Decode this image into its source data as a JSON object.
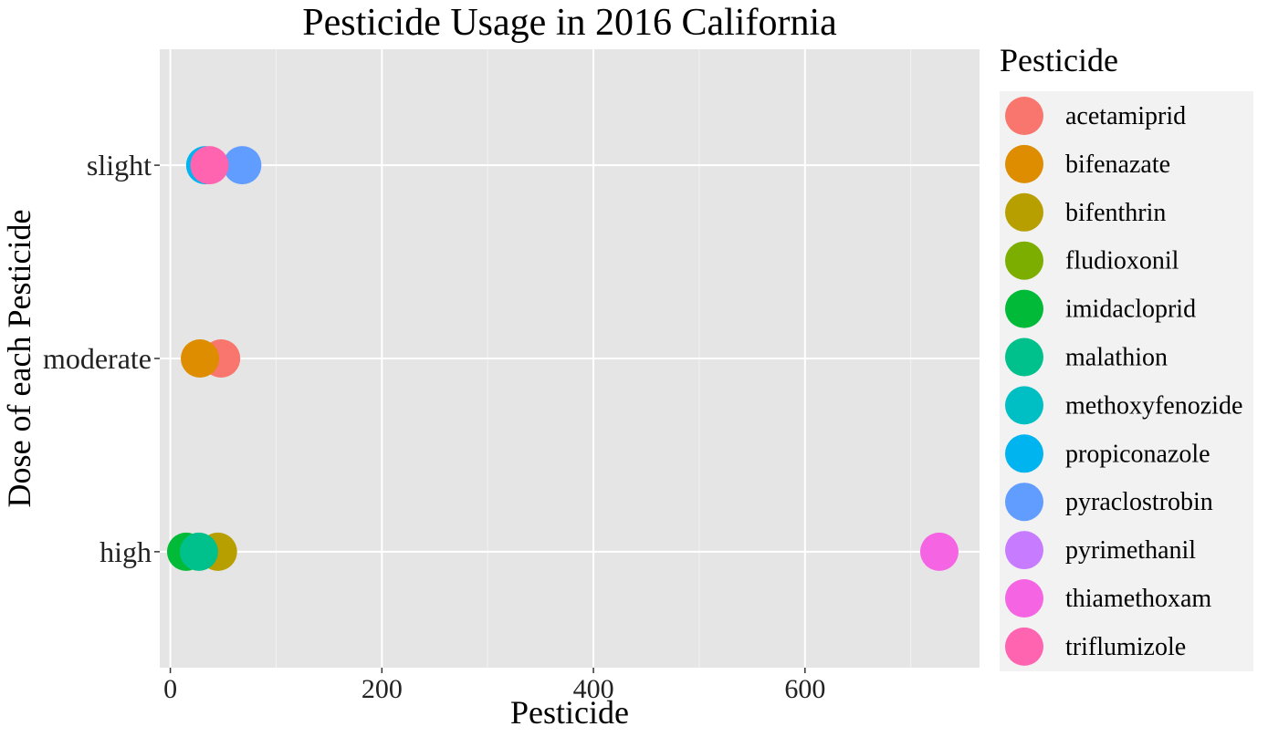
{
  "chart_data": {
    "type": "scatter",
    "title": "Pesticide Usage in 2016 California",
    "xlabel": "Pesticide",
    "ylabel": "Dose of each Pesticide",
    "xlim": [
      -10,
      765
    ],
    "x_ticks": [
      0,
      200,
      400,
      600
    ],
    "x_tick_labels": [
      "0",
      "200",
      "400",
      "600"
    ],
    "categories": [
      "high",
      "moderate",
      "slight"
    ],
    "grid": true,
    "legend": {
      "title": "Pesticide",
      "placement": "right"
    },
    "series": [
      {
        "name": "acetamiprid",
        "color": "#F8766D",
        "points": [
          {
            "x": 48,
            "y": "moderate"
          }
        ]
      },
      {
        "name": "bifenazate",
        "color": "#DE8C00",
        "points": [
          {
            "x": 28,
            "y": "moderate"
          }
        ]
      },
      {
        "name": "bifenthrin",
        "color": "#B79F00",
        "points": [
          {
            "x": 45,
            "y": "high"
          }
        ]
      },
      {
        "name": "fludioxonil",
        "color": "#7CAE00",
        "points": []
      },
      {
        "name": "imidacloprid",
        "color": "#00BA38",
        "points": [
          {
            "x": 15,
            "y": "high"
          }
        ]
      },
      {
        "name": "malathion",
        "color": "#00C08B",
        "points": [
          {
            "x": 27,
            "y": "high"
          }
        ]
      },
      {
        "name": "methoxyfenozide",
        "color": "#00BFC4",
        "points": []
      },
      {
        "name": "propiconazole",
        "color": "#00B4F0",
        "points": [
          {
            "x": 33,
            "y": "slight"
          }
        ]
      },
      {
        "name": "pyraclostrobin",
        "color": "#619CFF",
        "points": [
          {
            "x": 68,
            "y": "slight"
          }
        ]
      },
      {
        "name": "pyrimethanil",
        "color": "#C77CFF",
        "points": []
      },
      {
        "name": "thiamethoxam",
        "color": "#F564E3",
        "points": [
          {
            "x": 727,
            "y": "high"
          }
        ]
      },
      {
        "name": "triflumizole",
        "color": "#FF64B0",
        "points": [
          {
            "x": 37,
            "y": "slight"
          }
        ]
      }
    ]
  }
}
